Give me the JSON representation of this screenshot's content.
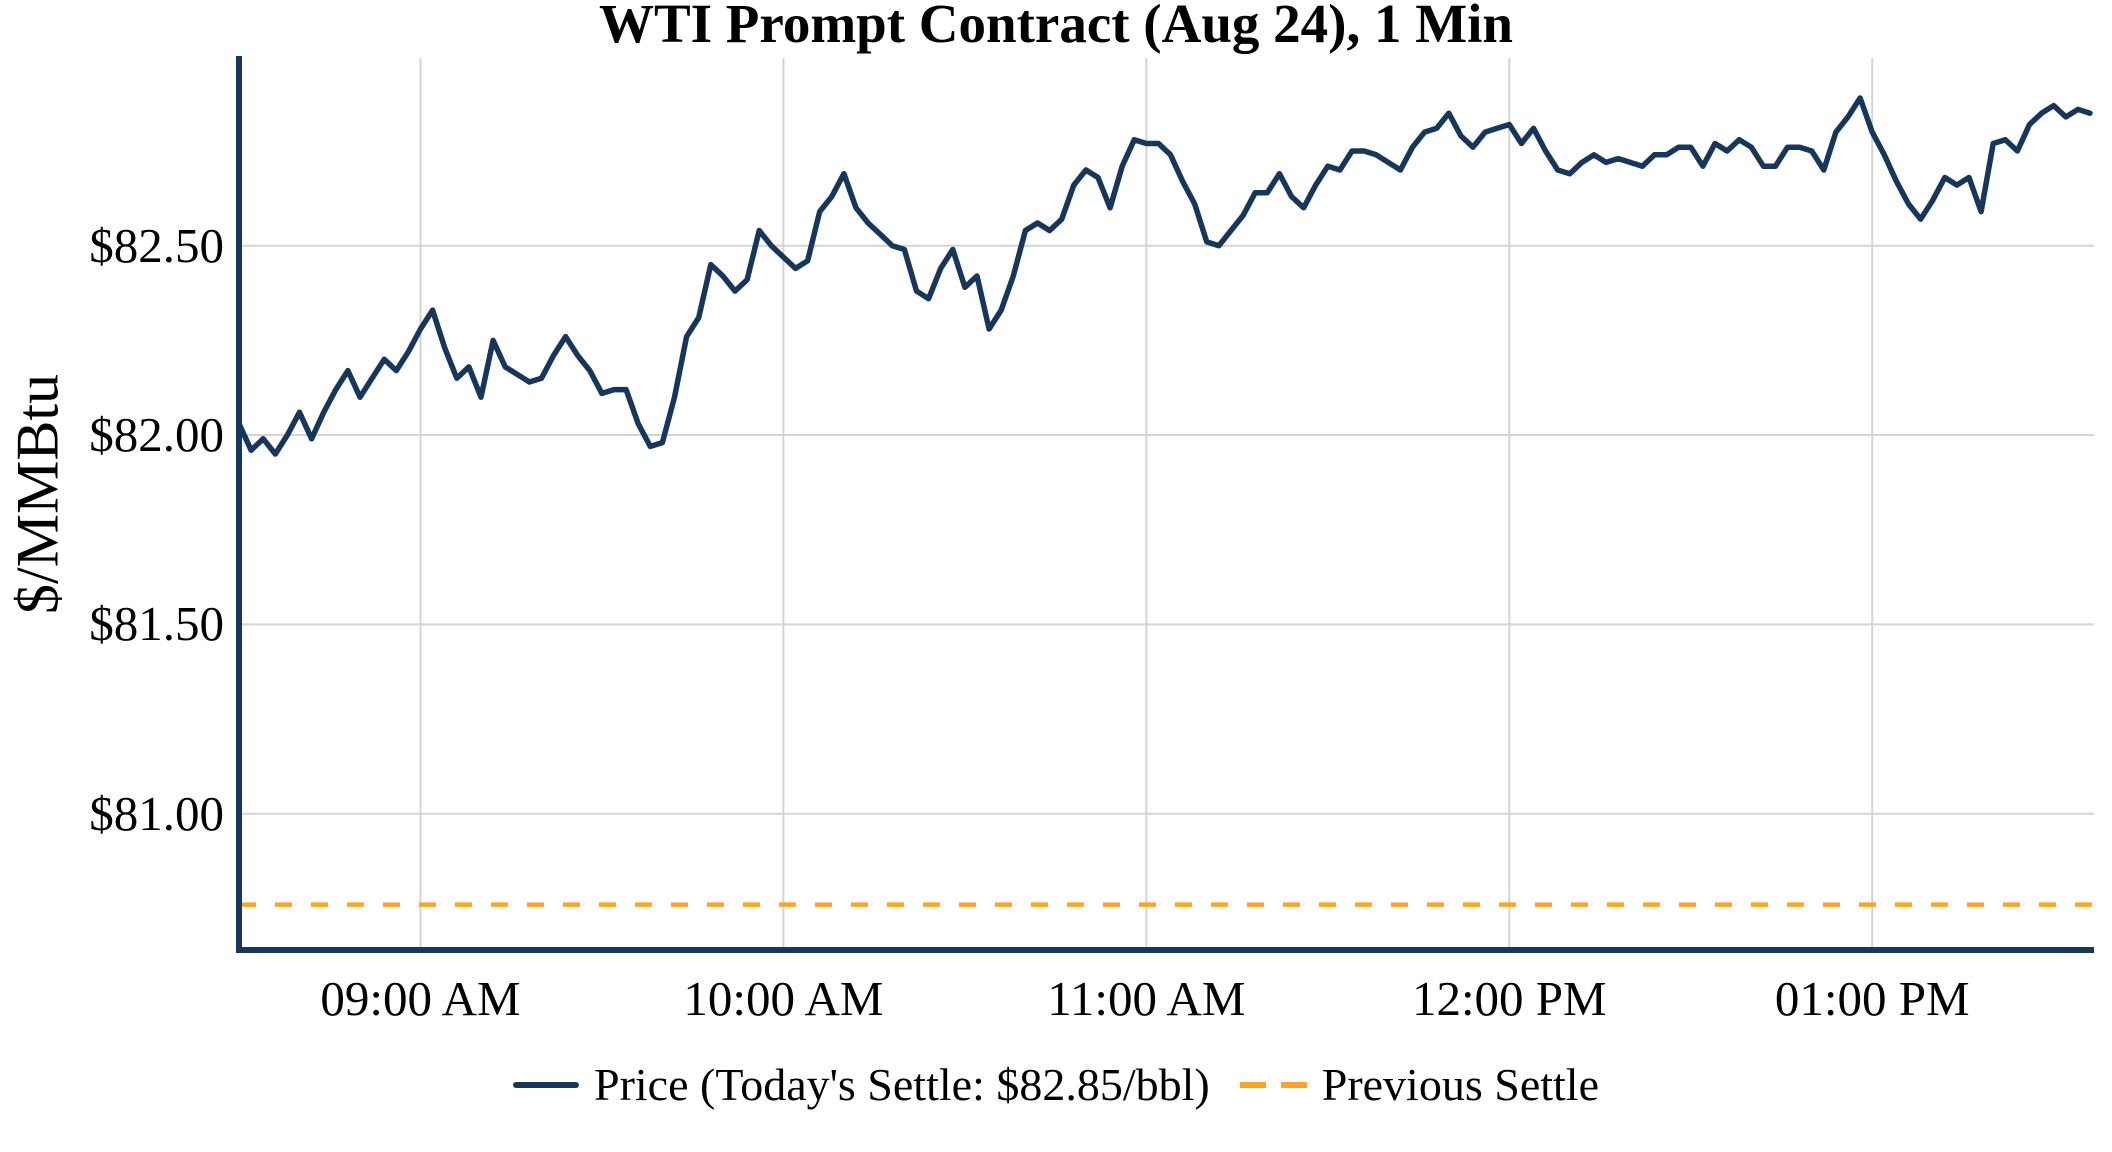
{
  "title": "WTI Prompt Contract (Aug 24), 1 Min",
  "y_axis": {
    "label": "$/MMBtu",
    "ticks": [
      {
        "value": 82.5,
        "label": "$82.50"
      },
      {
        "value": 82.0,
        "label": "$82.00"
      },
      {
        "value": 81.5,
        "label": "$81.50"
      },
      {
        "value": 81.0,
        "label": "$81.00"
      }
    ]
  },
  "x_axis": {
    "ticks": [
      {
        "minutes": 30,
        "label": "09:00 AM"
      },
      {
        "minutes": 90,
        "label": "10:00 AM"
      },
      {
        "minutes": 150,
        "label": "11:00 AM"
      },
      {
        "minutes": 210,
        "label": "12:00 PM"
      },
      {
        "minutes": 270,
        "label": "01:00 PM"
      }
    ]
  },
  "legend": {
    "price_label": "Price (Today's Settle: $82.85/bbl)",
    "previous_settle_label": "Previous Settle"
  },
  "colors": {
    "price_line": "#16365C",
    "previous_settle": "#FFA420",
    "gridline": "#D4D4D4",
    "axis": "#16365C",
    "text": "#000000"
  },
  "chart_data": {
    "type": "line",
    "title": "WTI Prompt Contract (Aug 24), 1 Min",
    "ylabel": "$/MMBtu",
    "ylim": [
      80.64,
      83.03
    ],
    "grid": true,
    "legend_position": "bottom",
    "x_start": "08:30 AM",
    "x_end": "01:36 PM",
    "interval_min": 2,
    "today_settle": 82.85,
    "series": [
      {
        "name": "Price (Today's Settle: $82.85/bbl)",
        "type": "line",
        "color": "#16365C",
        "values": [
          82.03,
          81.96,
          81.99,
          81.95,
          82.0,
          82.06,
          81.99,
          82.06,
          82.12,
          82.17,
          82.1,
          82.15,
          82.2,
          82.17,
          82.22,
          82.28,
          82.33,
          82.23,
          82.15,
          82.18,
          82.1,
          82.25,
          82.18,
          82.16,
          82.14,
          82.15,
          82.21,
          82.26,
          82.21,
          82.17,
          82.11,
          82.12,
          82.12,
          82.03,
          81.97,
          81.98,
          82.1,
          82.26,
          82.31,
          82.45,
          82.42,
          82.38,
          82.41,
          82.54,
          82.5,
          82.47,
          82.44,
          82.46,
          82.59,
          82.63,
          82.69,
          82.6,
          82.56,
          82.53,
          82.5,
          82.49,
          82.38,
          82.36,
          82.44,
          82.49,
          82.39,
          82.42,
          82.28,
          82.33,
          82.42,
          82.54,
          82.56,
          82.54,
          82.57,
          82.66,
          82.7,
          82.68,
          82.6,
          82.71,
          82.78,
          82.77,
          82.77,
          82.74,
          82.67,
          82.61,
          82.51,
          82.5,
          82.54,
          82.58,
          82.64,
          82.64,
          82.69,
          82.63,
          82.6,
          82.66,
          82.71,
          82.7,
          82.75,
          82.75,
          82.74,
          82.72,
          82.7,
          82.76,
          82.8,
          82.81,
          82.85,
          82.79,
          82.76,
          82.8,
          82.81,
          82.82,
          82.77,
          82.81,
          82.75,
          82.7,
          82.69,
          82.72,
          82.74,
          82.72,
          82.73,
          82.72,
          82.71,
          82.74,
          82.74,
          82.76,
          82.76,
          82.71,
          82.77,
          82.75,
          82.78,
          82.76,
          82.71,
          82.71,
          82.76,
          82.76,
          82.75,
          82.7,
          82.8,
          82.84,
          82.89,
          82.8,
          82.74,
          82.67,
          82.61,
          82.57,
          82.62,
          82.68,
          82.66,
          82.68,
          82.59,
          82.77,
          82.78,
          82.75,
          82.82,
          82.85,
          82.87,
          82.84,
          82.86,
          82.85
        ]
      },
      {
        "name": "Previous Settle",
        "type": "hline",
        "style": "dashed",
        "color": "#FFA420",
        "value": 80.76
      }
    ]
  }
}
